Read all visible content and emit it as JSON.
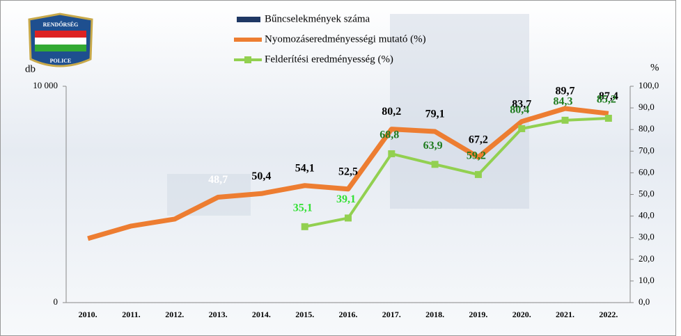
{
  "chart_data": {
    "type": "bar-line",
    "categories": [
      "2010.",
      "2011.",
      "2012.",
      "2013.",
      "2014.",
      "2015.",
      "2016.",
      "2017.",
      "2018.",
      "2019.",
      "2020.",
      "2021.",
      "2022."
    ],
    "y_label": "db",
    "y2_label": "%",
    "ylim": [
      0,
      10000
    ],
    "yticks": [
      0,
      {
        "value": 10000,
        "label": "10 000"
      }
    ],
    "y2lim": [
      0,
      100
    ],
    "y2ticks": [
      {
        "value": 0,
        "label": "0,0"
      },
      {
        "value": 10,
        "label": "10,0"
      },
      {
        "value": 20,
        "label": "20,0"
      },
      {
        "value": 30,
        "label": "30,0"
      },
      {
        "value": 40,
        "label": "40,0"
      },
      {
        "value": 50,
        "label": "50,0"
      },
      {
        "value": 60,
        "label": "60,0"
      },
      {
        "value": 70,
        "label": "70,0"
      },
      {
        "value": 80,
        "label": "80,0"
      },
      {
        "value": 90,
        "label": "90,0"
      },
      {
        "value": 100,
        "label": "100,0"
      }
    ],
    "series": [
      {
        "name": "Bűncselekmények száma",
        "type": "bar",
        "color": "#1f3864",
        "values": [
          0,
          0,
          0,
          0,
          0,
          0,
          0,
          0,
          0,
          0,
          0,
          0,
          0
        ]
      },
      {
        "name": "Nyomozáseredményességi mutató (%)",
        "type": "line",
        "axis": "y2",
        "color": "#ed7d31",
        "values": [
          29.6,
          35.4,
          38.6,
          48.7,
          50.4,
          54.1,
          52.5,
          80.2,
          79.1,
          67.2,
          83.7,
          89.7,
          87.4
        ],
        "value_labels": [
          null,
          null,
          null,
          "48,7",
          "50,4",
          "54,1",
          "52,5",
          "80,2",
          "79,1",
          "67,2",
          "83,7",
          "89,7",
          "87,4"
        ],
        "label_colors": [
          "#ffffff",
          "#ffffff",
          "#ffffff",
          "#ffffff",
          "#000000",
          "#000000",
          "#000000",
          "#000000",
          "#000000",
          "#000000",
          "#000000",
          "#000000",
          "#000000"
        ]
      },
      {
        "name": "Felderítési eredményesség (%)",
        "type": "line",
        "axis": "y2",
        "color": "#92d050",
        "values": [
          null,
          null,
          null,
          null,
          null,
          35.1,
          39.1,
          68.8,
          63.9,
          59.2,
          80.4,
          84.3,
          85.2
        ],
        "value_labels": [
          null,
          null,
          null,
          null,
          null,
          "35,1",
          "39,1",
          "68,8",
          "63,9",
          "59,2",
          "80,4",
          "84,3",
          "85,2"
        ],
        "label_colors": [
          null,
          null,
          null,
          null,
          null,
          "#33e033",
          "#33e033",
          "#1e7b1e",
          "#1e7b1e",
          "#1e7b1e",
          "#1e7b1e",
          "#1e7b1e",
          "#1e7b1e"
        ]
      }
    ]
  }
}
